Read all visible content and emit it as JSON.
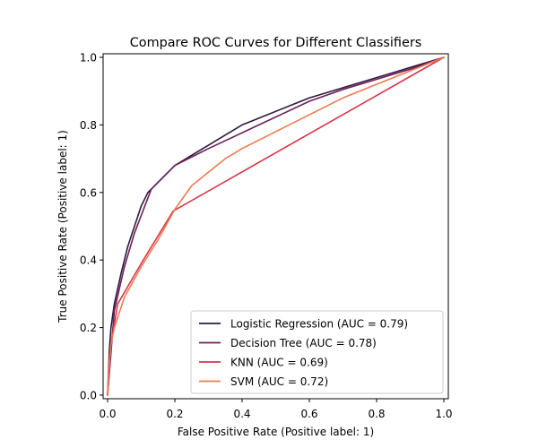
{
  "chart_data": {
    "type": "line",
    "title": "Compare ROC Curves for Different Classifiers",
    "xlabel": "False Positive Rate (Positive label: 1)",
    "ylabel": "True Positive Rate (Positive label: 1)",
    "xlim": [
      0.0,
      1.0
    ],
    "ylim": [
      0.0,
      1.0
    ],
    "xticks": [
      0.0,
      0.2,
      0.4,
      0.6,
      0.8,
      1.0
    ],
    "xtick_labels": [
      "0.0",
      "0.2",
      "0.4",
      "0.6",
      "0.8",
      "1.0"
    ],
    "yticks": [
      0.0,
      0.2,
      0.4,
      0.6,
      0.8,
      1.0
    ],
    "ytick_labels": [
      "0.0",
      "0.2",
      "0.4",
      "0.6",
      "0.8",
      "1.0"
    ],
    "grid": false,
    "legend_position": "lower-right",
    "series": [
      {
        "name": "Logistic Regression (AUC = 0.79)",
        "color": "#2b1a3d",
        "x": [
          0.0,
          0.005,
          0.01,
          0.02,
          0.04,
          0.06,
          0.08,
          0.1,
          0.12,
          0.15,
          0.2,
          0.25,
          0.3,
          0.35,
          0.4,
          0.45,
          0.5,
          0.55,
          0.6,
          0.65,
          0.7,
          0.75,
          0.8,
          0.85,
          0.9,
          0.95,
          1.0
        ],
        "y": [
          0.0,
          0.13,
          0.2,
          0.27,
          0.36,
          0.44,
          0.5,
          0.56,
          0.6,
          0.63,
          0.68,
          0.71,
          0.74,
          0.77,
          0.8,
          0.82,
          0.84,
          0.86,
          0.88,
          0.895,
          0.91,
          0.925,
          0.94,
          0.955,
          0.97,
          0.985,
          1.0
        ]
      },
      {
        "name": "Decision Tree (AUC = 0.78)",
        "color": "#6e1f5a",
        "x": [
          0.0,
          0.02,
          0.05,
          0.08,
          0.13,
          0.2,
          0.3,
          0.45,
          0.6,
          0.7,
          0.8,
          0.9,
          1.0
        ],
        "y": [
          0.0,
          0.25,
          0.38,
          0.48,
          0.61,
          0.68,
          0.73,
          0.8,
          0.87,
          0.905,
          0.935,
          0.965,
          1.0
        ]
      },
      {
        "name": "KNN (AUC = 0.69)",
        "color": "#d7364b",
        "x": [
          0.0,
          0.01,
          0.03,
          0.1,
          0.195,
          1.0
        ],
        "y": [
          0.0,
          0.15,
          0.27,
          0.39,
          0.545,
          1.0
        ]
      },
      {
        "name": "SVM (AUC = 0.72)",
        "color": "#f07a52",
        "x": [
          0.0,
          0.005,
          0.01,
          0.02,
          0.05,
          0.1,
          0.15,
          0.2,
          0.25,
          0.3,
          0.35,
          0.4,
          0.5,
          0.6,
          0.7,
          0.8,
          0.9,
          1.0
        ],
        "y": [
          0.0,
          0.1,
          0.15,
          0.2,
          0.29,
          0.38,
          0.46,
          0.55,
          0.62,
          0.66,
          0.7,
          0.73,
          0.78,
          0.83,
          0.88,
          0.92,
          0.96,
          1.0
        ]
      }
    ]
  }
}
